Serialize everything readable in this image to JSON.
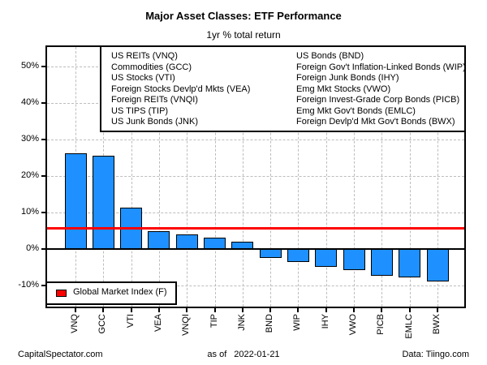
{
  "header": {
    "title": "Major Asset Classes: ETF Performance",
    "subtitle": "1yr % total return"
  },
  "etf_legend": {
    "left_column": [
      "US REITs (VNQ)",
      "Commodities (GCC)",
      "US Stocks (VTI)",
      "Foreign Stocks Devlp'd Mkts (VEA)",
      "Foreign REITs (VNQI)",
      "US TIPS (TIP)",
      "US Junk Bonds (JNK)"
    ],
    "right_column": [
      "US Bonds (BND)",
      "Foreign Gov't Inflation-Linked Bonds (WIP)",
      "Foreign Junk Bonds (IHY)",
      "Emg Mkt Stocks (VWO)",
      "Foreign Invest-Grade Corp Bonds (PICB)",
      "Emg Mkt Gov't Bonds (EMLC)",
      "Foreign Devlp'd Mkt Gov't Bonds (BWX)"
    ]
  },
  "market_index_legend": {
    "label": "Global Market Index (F)",
    "marker_color": "#ff0000"
  },
  "footer": {
    "source": "CapitalSpectator.com",
    "as_of_label": "as of",
    "as_of_date": "2022-01-21",
    "data_credit": "Data: Tiingo.com"
  },
  "chart_data": {
    "type": "bar",
    "title": "Major Asset Classes: ETF Performance",
    "subtitle": "1yr % total return",
    "categories": [
      "VNQ",
      "GCC",
      "VTI",
      "VEA",
      "VNQI",
      "TIP",
      "JNK",
      "BND",
      "WIP",
      "IHY",
      "VWO",
      "PICB",
      "EMLC",
      "BWX"
    ],
    "values": [
      26.3,
      25.6,
      11.4,
      4.9,
      4.0,
      3.0,
      2.0,
      -2.5,
      -3.6,
      -4.9,
      -5.8,
      -7.4,
      -7.8,
      -8.9
    ],
    "units": "%",
    "xlabel": "",
    "ylabel": "",
    "ylim": [
      -15.8,
      55.3
    ],
    "ytick_values": [
      50,
      40,
      30,
      20,
      10,
      0,
      -10
    ],
    "ytick_labels": [
      "50%",
      "40%",
      "30%",
      "20%",
      "10%",
      "0%",
      "-10%"
    ],
    "grid": "dashed",
    "legend_position": "top-inside",
    "bar_color": "#1e90ff",
    "bar_border_color": "#000000",
    "grid_color": "#bdbdbd",
    "reference_line": {
      "label": "Global Market Index (F)",
      "value": 5.7,
      "color": "#ff0000"
    }
  }
}
